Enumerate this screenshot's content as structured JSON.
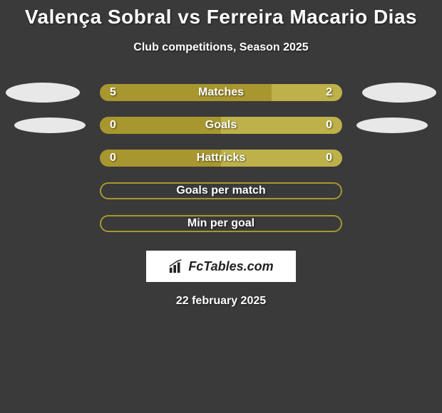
{
  "title": "Valença Sobral vs Ferreira Macario Dias",
  "subtitle": "Club competitions, Season 2025",
  "date": "22 february 2025",
  "logo": {
    "text": "FcTables.com"
  },
  "colors": {
    "bar_primary": "#a8972f",
    "bar_secondary": "#beb14a",
    "ellipse": "#e8e8e8",
    "background": "#3a3a3a",
    "text": "#ffffff",
    "empty_border": "#a8972f",
    "logo_bg": "#ffffff",
    "logo_text": "#222222"
  },
  "rows": [
    {
      "label": "Matches",
      "left_val": "5",
      "right_val": "2",
      "left_pct": 71,
      "right_pct": 29,
      "ellipse_left_bg": "#e8e8e8",
      "ellipse_right_bg": "#e8e8e8",
      "show_ellipse": true
    },
    {
      "label": "Goals",
      "left_val": "0",
      "right_val": "0",
      "left_pct": 50,
      "right_pct": 50,
      "ellipse_left_bg": "#e8e8e8",
      "ellipse_right_bg": "#e8e8e8",
      "show_ellipse": true,
      "ellipse_small": true
    },
    {
      "label": "Hattricks",
      "left_val": "0",
      "right_val": "0",
      "left_pct": 50,
      "right_pct": 50,
      "show_ellipse": false
    },
    {
      "label": "Goals per match",
      "empty": true,
      "show_ellipse": false
    },
    {
      "label": "Min per goal",
      "empty": true,
      "show_ellipse": false
    }
  ],
  "typography": {
    "title_fontsize": 28,
    "title_weight": 900,
    "subtitle_fontsize": 16,
    "row_label_fontsize": 16,
    "row_val_fontsize": 16,
    "date_fontsize": 16
  }
}
